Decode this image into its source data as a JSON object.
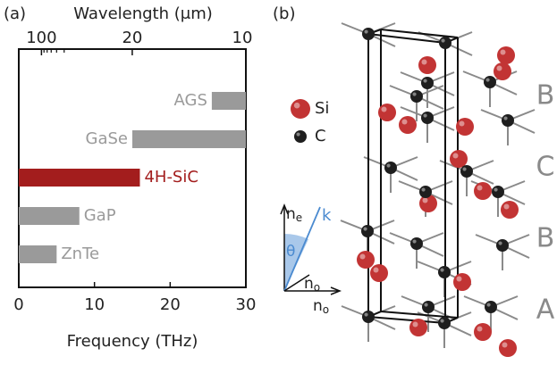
{
  "chart_data": {
    "type": "bar",
    "orientation": "horizontal",
    "panel_label": "(a)",
    "xlabel": "Frequency (THz)",
    "x2label": "Wavelength (μm)",
    "categories": [
      "AGS",
      "GaSe",
      "4H-SiC",
      "GaP",
      "ZnTe"
    ],
    "starts": [
      25.5,
      15,
      0,
      0,
      0
    ],
    "values": [
      30,
      30,
      16,
      8,
      5
    ],
    "colors": [
      "#9a9a9a",
      "#9a9a9a",
      "#a31d1d",
      "#9a9a9a",
      "#9a9a9a"
    ],
    "xlim": [
      0,
      30
    ],
    "xticks": [
      0,
      10,
      20,
      30
    ],
    "x2ticks": [
      100,
      20,
      10
    ],
    "x2minor": [
      90,
      80,
      70,
      60,
      50
    ]
  },
  "diagram": {
    "panel_label": "(b)",
    "legend": [
      {
        "label": "Si",
        "color": "#c23434"
      },
      {
        "label": "C",
        "color": "#1e1e1e"
      }
    ],
    "stacking": [
      "B",
      "C",
      "B",
      "A"
    ],
    "axes": {
      "ne": {
        "main": "n",
        "sub": "e"
      },
      "k": "k",
      "theta": "θ",
      "no_1": {
        "main": "n",
        "sub": "o"
      },
      "no_2": {
        "main": "n",
        "sub": "o"
      }
    }
  }
}
